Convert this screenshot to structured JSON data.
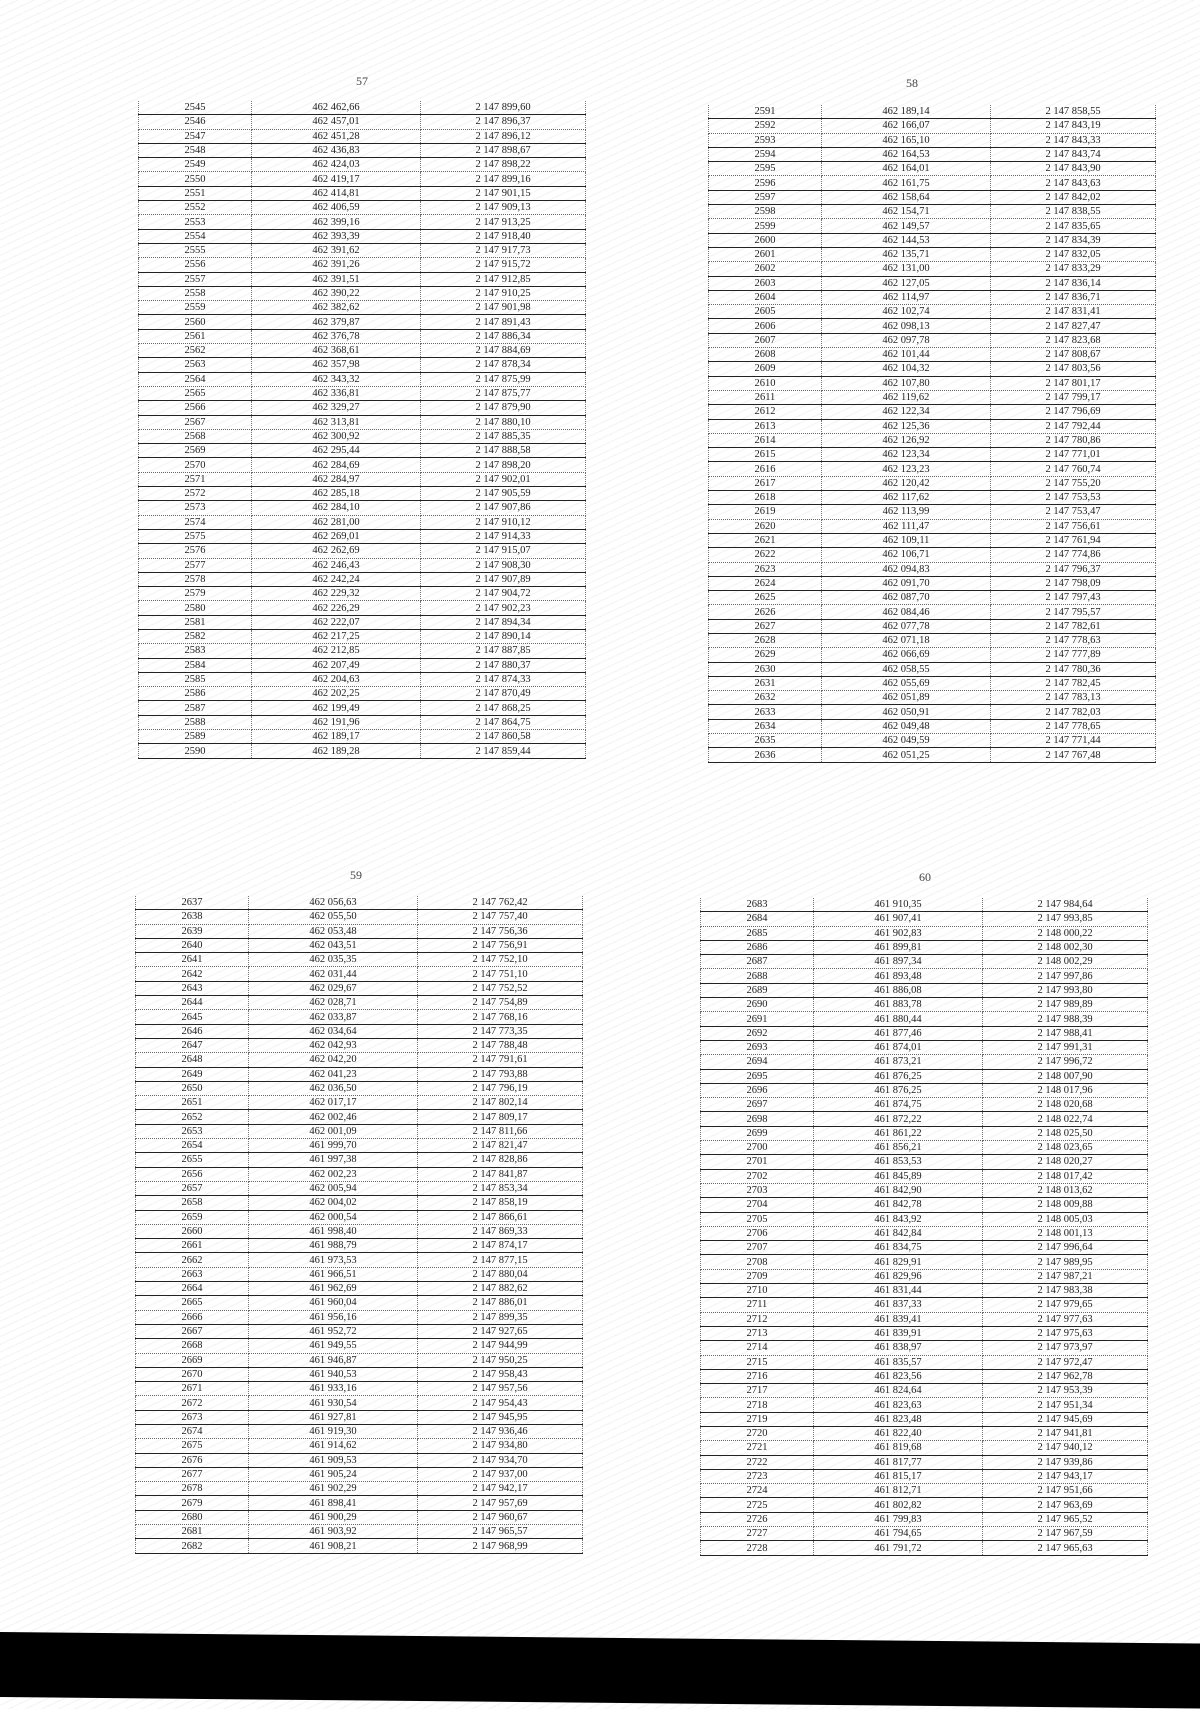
{
  "pages": [
    {
      "page_number": "57",
      "rows": [
        [
          "2545",
          "462 462,66",
          "2 147 899,60"
        ],
        [
          "2546",
          "462 457,01",
          "2 147 896,37"
        ],
        [
          "2547",
          "462 451,28",
          "2 147 896,12"
        ],
        [
          "2548",
          "462 436,83",
          "2 147 898,67"
        ],
        [
          "2549",
          "462 424,03",
          "2 147 898,22"
        ],
        [
          "2550",
          "462 419,17",
          "2 147 899,16"
        ],
        [
          "2551",
          "462 414,81",
          "2 147 901,15"
        ],
        [
          "2552",
          "462 406,59",
          "2 147 909,13"
        ],
        [
          "2553",
          "462 399,16",
          "2 147 913,25"
        ],
        [
          "2554",
          "462 393,39",
          "2 147 918,40"
        ],
        [
          "2555",
          "462 391,62",
          "2 147 917,73"
        ],
        [
          "2556",
          "462 391,26",
          "2 147 915,72"
        ],
        [
          "2557",
          "462 391,51",
          "2 147 912,85"
        ],
        [
          "2558",
          "462 390,22",
          "2 147 910,25"
        ],
        [
          "2559",
          "462 382,62",
          "2 147 901,98"
        ],
        [
          "2560",
          "462 379,87",
          "2 147 891,43"
        ],
        [
          "2561",
          "462 376,78",
          "2 147 886,34"
        ],
        [
          "2562",
          "462 368,61",
          "2 147 884,69"
        ],
        [
          "2563",
          "462 357,98",
          "2 147 878,34"
        ],
        [
          "2564",
          "462 343,32",
          "2 147 875,99"
        ],
        [
          "2565",
          "462 336,81",
          "2 147 875,77"
        ],
        [
          "2566",
          "462 329,27",
          "2 147 879,90"
        ],
        [
          "2567",
          "462 313,81",
          "2 147 880,10"
        ],
        [
          "2568",
          "462 300,92",
          "2 147 885,35"
        ],
        [
          "2569",
          "462 295,44",
          "2 147 888,58"
        ],
        [
          "2570",
          "462 284,69",
          "2 147 898,20"
        ],
        [
          "2571",
          "462 284,97",
          "2 147 902,01"
        ],
        [
          "2572",
          "462 285,18",
          "2 147 905,59"
        ],
        [
          "2573",
          "462 284,10",
          "2 147 907,86"
        ],
        [
          "2574",
          "462 281,00",
          "2 147 910,12"
        ],
        [
          "2575",
          "462 269,01",
          "2 147 914,33"
        ],
        [
          "2576",
          "462 262,69",
          "2 147 915,07"
        ],
        [
          "2577",
          "462 246,43",
          "2 147 908,30"
        ],
        [
          "2578",
          "462 242,24",
          "2 147 907,89"
        ],
        [
          "2579",
          "462 229,32",
          "2 147 904,72"
        ],
        [
          "2580",
          "462 226,29",
          "2 147 902,23"
        ],
        [
          "2581",
          "462 222,07",
          "2 147 894,34"
        ],
        [
          "2582",
          "462 217,25",
          "2 147 890,14"
        ],
        [
          "2583",
          "462 212,85",
          "2 147 887,85"
        ],
        [
          "2584",
          "462 207,49",
          "2 147 880,37"
        ],
        [
          "2585",
          "462 204,63",
          "2 147 874,33"
        ],
        [
          "2586",
          "462 202,25",
          "2 147 870,49"
        ],
        [
          "2587",
          "462 199,49",
          "2 147 868,25"
        ],
        [
          "2588",
          "462 191,96",
          "2 147 864,75"
        ],
        [
          "2589",
          "462 189,17",
          "2 147 860,58"
        ],
        [
          "2590",
          "462 189,28",
          "2 147 859,44"
        ]
      ]
    },
    {
      "page_number": "58",
      "rows": [
        [
          "2591",
          "462 189,14",
          "2 147 858,55"
        ],
        [
          "2592",
          "462 166,07",
          "2 147 843,19"
        ],
        [
          "2593",
          "462 165,10",
          "2 147 843,33"
        ],
        [
          "2594",
          "462 164,53",
          "2 147 843,74"
        ],
        [
          "2595",
          "462 164,01",
          "2 147 843,90"
        ],
        [
          "2596",
          "462 161,75",
          "2 147 843,63"
        ],
        [
          "2597",
          "462 158,64",
          "2 147 842,02"
        ],
        [
          "2598",
          "462 154,71",
          "2 147 838,55"
        ],
        [
          "2599",
          "462 149,57",
          "2 147 835,65"
        ],
        [
          "2600",
          "462 144,53",
          "2 147 834,39"
        ],
        [
          "2601",
          "462 135,71",
          "2 147 832,05"
        ],
        [
          "2602",
          "462 131,00",
          "2 147 833,29"
        ],
        [
          "2603",
          "462 127,05",
          "2 147 836,14"
        ],
        [
          "2604",
          "462 114,97",
          "2 147 836,71"
        ],
        [
          "2605",
          "462 102,74",
          "2 147 831,41"
        ],
        [
          "2606",
          "462 098,13",
          "2 147 827,47"
        ],
        [
          "2607",
          "462 097,78",
          "2 147 823,68"
        ],
        [
          "2608",
          "462 101,44",
          "2 147 808,67"
        ],
        [
          "2609",
          "462 104,32",
          "2 147 803,56"
        ],
        [
          "2610",
          "462 107,80",
          "2 147 801,17"
        ],
        [
          "2611",
          "462 119,62",
          "2 147 799,17"
        ],
        [
          "2612",
          "462 122,34",
          "2 147 796,69"
        ],
        [
          "2613",
          "462 125,36",
          "2 147 792,44"
        ],
        [
          "2614",
          "462 126,92",
          "2 147 780,86"
        ],
        [
          "2615",
          "462 123,34",
          "2 147 771,01"
        ],
        [
          "2616",
          "462 123,23",
          "2 147 760,74"
        ],
        [
          "2617",
          "462 120,42",
          "2 147 755,20"
        ],
        [
          "2618",
          "462 117,62",
          "2 147 753,53"
        ],
        [
          "2619",
          "462 113,99",
          "2 147 753,47"
        ],
        [
          "2620",
          "462 111,47",
          "2 147 756,61"
        ],
        [
          "2621",
          "462 109,11",
          "2 147 761,94"
        ],
        [
          "2622",
          "462 106,71",
          "2 147 774,86"
        ],
        [
          "2623",
          "462 094,83",
          "2 147 796,37"
        ],
        [
          "2624",
          "462 091,70",
          "2 147 798,09"
        ],
        [
          "2625",
          "462 087,70",
          "2 147 797,43"
        ],
        [
          "2626",
          "462 084,46",
          "2 147 795,57"
        ],
        [
          "2627",
          "462 077,78",
          "2 147 782,61"
        ],
        [
          "2628",
          "462 071,18",
          "2 147 778,63"
        ],
        [
          "2629",
          "462 066,69",
          "2 147 777,89"
        ],
        [
          "2630",
          "462 058,55",
          "2 147 780,36"
        ],
        [
          "2631",
          "462 055,69",
          "2 147 782,45"
        ],
        [
          "2632",
          "462 051,89",
          "2 147 783,13"
        ],
        [
          "2633",
          "462 050,91",
          "2 147 782,03"
        ],
        [
          "2634",
          "462 049,48",
          "2 147 778,65"
        ],
        [
          "2635",
          "462 049,59",
          "2 147 771,44"
        ],
        [
          "2636",
          "462 051,25",
          "2 147 767,48"
        ]
      ]
    },
    {
      "page_number": "59",
      "rows": [
        [
          "2637",
          "462 056,63",
          "2 147 762,42"
        ],
        [
          "2638",
          "462 055,50",
          "2 147 757,40"
        ],
        [
          "2639",
          "462 053,48",
          "2 147 756,36"
        ],
        [
          "2640",
          "462 043,51",
          "2 147 756,91"
        ],
        [
          "2641",
          "462 035,35",
          "2 147 752,10"
        ],
        [
          "2642",
          "462 031,44",
          "2 147 751,10"
        ],
        [
          "2643",
          "462 029,67",
          "2 147 752,52"
        ],
        [
          "2644",
          "462 028,71",
          "2 147 754,89"
        ],
        [
          "2645",
          "462 033,87",
          "2 147 768,16"
        ],
        [
          "2646",
          "462 034,64",
          "2 147 773,35"
        ],
        [
          "2647",
          "462 042,93",
          "2 147 788,48"
        ],
        [
          "2648",
          "462 042,20",
          "2 147 791,61"
        ],
        [
          "2649",
          "462 041,23",
          "2 147 793,88"
        ],
        [
          "2650",
          "462 036,50",
          "2 147 796,19"
        ],
        [
          "2651",
          "462 017,17",
          "2 147 802,14"
        ],
        [
          "2652",
          "462 002,46",
          "2 147 809,17"
        ],
        [
          "2653",
          "462 001,09",
          "2 147 811,66"
        ],
        [
          "2654",
          "461 999,70",
          "2 147 821,47"
        ],
        [
          "2655",
          "461 997,38",
          "2 147 828,86"
        ],
        [
          "2656",
          "462 002,23",
          "2 147 841,87"
        ],
        [
          "2657",
          "462 005,94",
          "2 147 853,34"
        ],
        [
          "2658",
          "462 004,02",
          "2 147 858,19"
        ],
        [
          "2659",
          "462 000,54",
          "2 147 866,61"
        ],
        [
          "2660",
          "461 998,40",
          "2 147 869,33"
        ],
        [
          "2661",
          "461 988,79",
          "2 147 874,17"
        ],
        [
          "2662",
          "461 973,53",
          "2 147 877,15"
        ],
        [
          "2663",
          "461 966,51",
          "2 147 880,04"
        ],
        [
          "2664",
          "461 962,69",
          "2 147 882,62"
        ],
        [
          "2665",
          "461 960,04",
          "2 147 886,01"
        ],
        [
          "2666",
          "461 956,16",
          "2 147 899,35"
        ],
        [
          "2667",
          "461 952,72",
          "2 147 927,65"
        ],
        [
          "2668",
          "461 949,55",
          "2 147 944,99"
        ],
        [
          "2669",
          "461 946,87",
          "2 147 950,25"
        ],
        [
          "2670",
          "461 940,53",
          "2 147 958,43"
        ],
        [
          "2671",
          "461 933,16",
          "2 147 957,56"
        ],
        [
          "2672",
          "461 930,54",
          "2 147 954,43"
        ],
        [
          "2673",
          "461 927,81",
          "2 147 945,95"
        ],
        [
          "2674",
          "461 919,30",
          "2 147 936,46"
        ],
        [
          "2675",
          "461 914,62",
          "2 147 934,80"
        ],
        [
          "2676",
          "461 909,53",
          "2 147 934,70"
        ],
        [
          "2677",
          "461 905,24",
          "2 147 937,00"
        ],
        [
          "2678",
          "461 902,29",
          "2 147 942,17"
        ],
        [
          "2679",
          "461 898,41",
          "2 147 957,69"
        ],
        [
          "2680",
          "461 900,29",
          "2 147 960,67"
        ],
        [
          "2681",
          "461 903,92",
          "2 147 965,57"
        ],
        [
          "2682",
          "461 908,21",
          "2 147 968,99"
        ]
      ]
    },
    {
      "page_number": "60",
      "rows": [
        [
          "2683",
          "461 910,35",
          "2 147 984,64"
        ],
        [
          "2684",
          "461 907,41",
          "2 147 993,85"
        ],
        [
          "2685",
          "461 902,83",
          "2 148 000,22"
        ],
        [
          "2686",
          "461 899,81",
          "2 148 002,30"
        ],
        [
          "2687",
          "461 897,34",
          "2 148 002,29"
        ],
        [
          "2688",
          "461 893,48",
          "2 147 997,86"
        ],
        [
          "2689",
          "461 886,08",
          "2 147 993,80"
        ],
        [
          "2690",
          "461 883,78",
          "2 147 989,89"
        ],
        [
          "2691",
          "461 880,44",
          "2 147 988,39"
        ],
        [
          "2692",
          "461 877,46",
          "2 147 988,41"
        ],
        [
          "2693",
          "461 874,01",
          "2 147 991,31"
        ],
        [
          "2694",
          "461 873,21",
          "2 147 996,72"
        ],
        [
          "2695",
          "461 876,25",
          "2 148 007,90"
        ],
        [
          "2696",
          "461 876,25",
          "2 148 017,96"
        ],
        [
          "2697",
          "461 874,75",
          "2 148 020,68"
        ],
        [
          "2698",
          "461 872,22",
          "2 148 022,74"
        ],
        [
          "2699",
          "461 861,22",
          "2 148 025,50"
        ],
        [
          "2700",
          "461 856,21",
          "2 148 023,65"
        ],
        [
          "2701",
          "461 853,53",
          "2 148 020,27"
        ],
        [
          "2702",
          "461 845,89",
          "2 148 017,42"
        ],
        [
          "2703",
          "461 842,90",
          "2 148 013,62"
        ],
        [
          "2704",
          "461 842,78",
          "2 148 009,88"
        ],
        [
          "2705",
          "461 843,92",
          "2 148 005,03"
        ],
        [
          "2706",
          "461 842,84",
          "2 148 001,13"
        ],
        [
          "2707",
          "461 834,75",
          "2 147 996,64"
        ],
        [
          "2708",
          "461 829,91",
          "2 147 989,95"
        ],
        [
          "2709",
          "461 829,96",
          "2 147 987,21"
        ],
        [
          "2710",
          "461 831,44",
          "2 147 983,38"
        ],
        [
          "2711",
          "461 837,33",
          "2 147 979,65"
        ],
        [
          "2712",
          "461 839,41",
          "2 147 977,63"
        ],
        [
          "2713",
          "461 839,91",
          "2 147 975,63"
        ],
        [
          "2714",
          "461 838,97",
          "2 147 973,97"
        ],
        [
          "2715",
          "461 835,57",
          "2 147 972,47"
        ],
        [
          "2716",
          "461 823,56",
          "2 147 962,78"
        ],
        [
          "2717",
          "461 824,64",
          "2 147 953,39"
        ],
        [
          "2718",
          "461 823,63",
          "2 147 951,34"
        ],
        [
          "2719",
          "461 823,48",
          "2 147 945,69"
        ],
        [
          "2720",
          "461 822,40",
          "2 147 941,81"
        ],
        [
          "2721",
          "461 819,68",
          "2 147 940,12"
        ],
        [
          "2722",
          "461 817,77",
          "2 147 939,86"
        ],
        [
          "2723",
          "461 815,17",
          "2 147 943,17"
        ],
        [
          "2724",
          "461 812,71",
          "2 147 951,66"
        ],
        [
          "2725",
          "461 802,82",
          "2 147 963,69"
        ],
        [
          "2726",
          "461 799,83",
          "2 147 965,52"
        ],
        [
          "2727",
          "461 794,65",
          "2 147 967,59"
        ],
        [
          "2728",
          "461 791,72",
          "2 147 965,63"
        ]
      ]
    }
  ]
}
